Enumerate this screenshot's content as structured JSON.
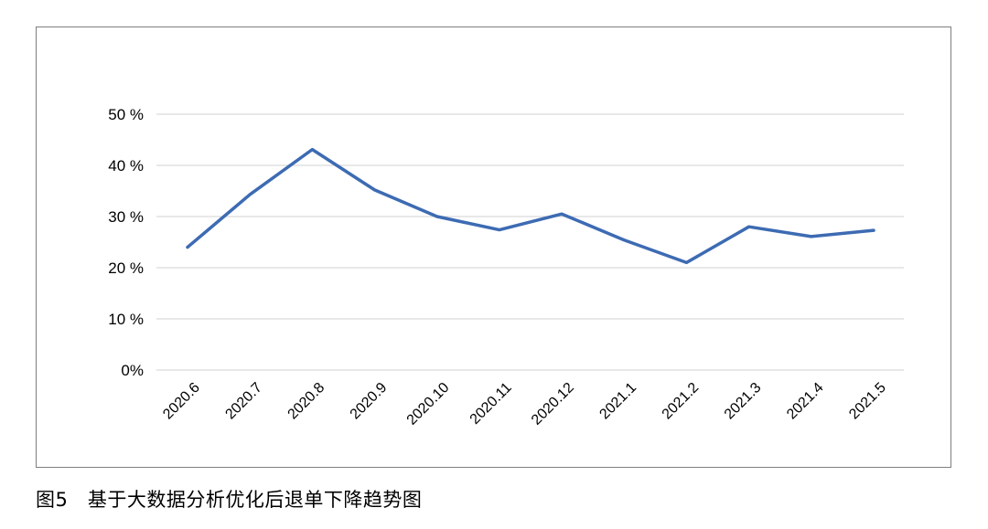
{
  "caption": "图5　基于大数据分析优化后退单下降趋势图",
  "chart_data": {
    "type": "line",
    "title": "",
    "xlabel": "",
    "ylabel": "",
    "categories": [
      "2020.6",
      "2020.7",
      "2020.8",
      "2020.9",
      "2020.10",
      "2020.11",
      "2020.12",
      "2021.1",
      "2021.2",
      "2021.3",
      "2021.4",
      "2021.5"
    ],
    "series": [
      {
        "values": [
          24.0,
          34.3,
          43.1,
          35.2,
          30.0,
          27.4,
          30.5,
          25.4,
          21.0,
          28.0,
          26.1,
          27.3
        ],
        "color": "#3d6bb3"
      }
    ],
    "ylim": [
      0,
      50
    ],
    "yticks": [
      0,
      10,
      20,
      30,
      40,
      50
    ],
    "ytick_labels": [
      "0%",
      "10 %",
      "20 %",
      "30 %",
      "40 %",
      "50 %"
    ],
    "grid": true,
    "grid_color": "#d9d9d9",
    "legend": "none",
    "xtick_rotation": -45
  }
}
